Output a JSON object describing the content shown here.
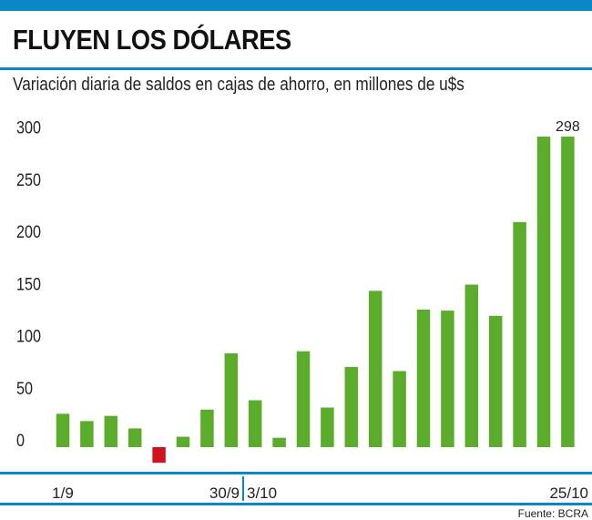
{
  "header": {
    "title": "FLUYEN LOS DÓLARES",
    "subtitle": "Variación diaria de saldos en cajas de ahorro, en millones de u$s"
  },
  "source": "Fuente: BCRA",
  "colors": {
    "accent": "#0b87c9",
    "positive": "#5aac2a",
    "negative": "#d0141e"
  },
  "chart_data": {
    "type": "bar",
    "title": "FLUYEN LOS DÓLARES",
    "subtitle": "Variación diaria de saldos en cajas de ahorro, en millones de u$s",
    "xlabel": "",
    "ylabel": "millones de u$s",
    "ylim": [
      -20,
      300
    ],
    "yticks": [
      "0",
      "50",
      "100",
      "150",
      "200",
      "250",
      "300"
    ],
    "ytick_values": [
      0,
      50,
      100,
      150,
      200,
      250,
      300
    ],
    "x_tick_labels": [
      {
        "index": 0,
        "label": "1/9"
      },
      {
        "index": 7,
        "label": "30/9"
      },
      {
        "index": 8,
        "label": "3/10"
      },
      {
        "index": 21,
        "label": "25/10"
      }
    ],
    "values": [
      32,
      25,
      30,
      18,
      -15,
      10,
      36,
      90,
      45,
      9,
      92,
      38,
      77,
      150,
      73,
      132,
      131,
      156,
      126,
      216,
      298,
      298
    ],
    "annotations": [
      {
        "index": 21,
        "text": "298"
      }
    ],
    "grid": false,
    "legend": "none"
  }
}
